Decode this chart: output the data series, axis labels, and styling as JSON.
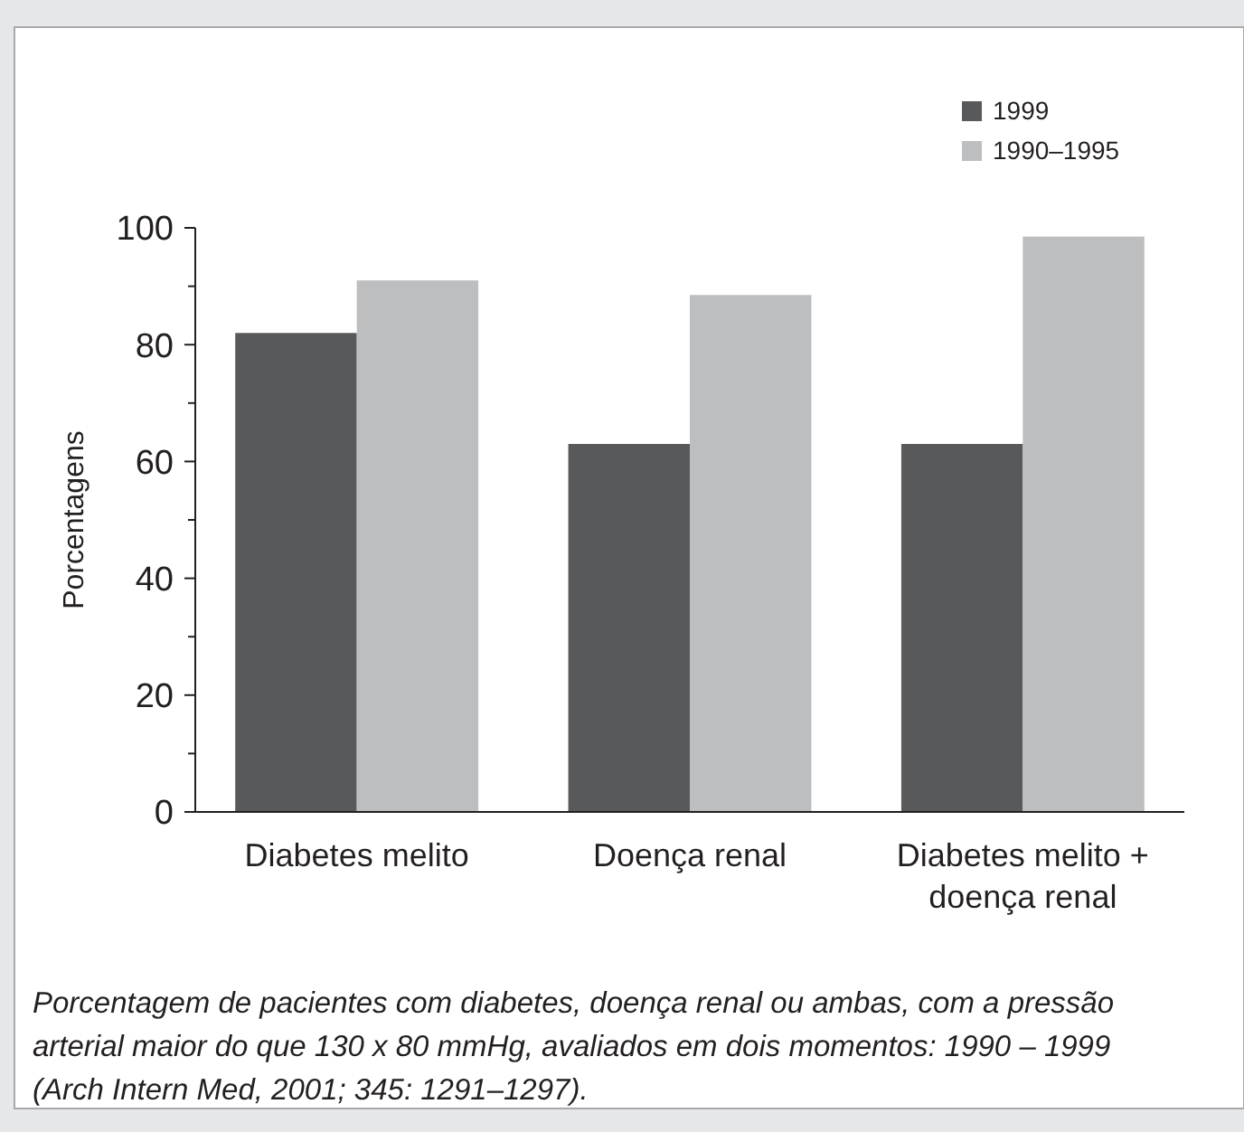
{
  "chart_data": {
    "type": "bar",
    "categories": [
      "Diabetes melito",
      "Doença renal",
      "Diabetes melito + doença renal"
    ],
    "series": [
      {
        "name": "1999",
        "color": "#58595b",
        "values": [
          82,
          63,
          63
        ]
      },
      {
        "name": "1990–1995",
        "color": "#bcbec0",
        "values": [
          91,
          88.5,
          98.5
        ]
      }
    ],
    "ylabel": "Porcentagens",
    "ylim": [
      0,
      100
    ],
    "yticks": [
      0,
      {
        "value": 10,
        "label": null
      },
      20,
      {
        "value": 30,
        "label": null
      },
      40,
      {
        "value": 50,
        "label": null
      },
      60,
      {
        "value": 70,
        "label": null
      },
      80,
      {
        "value": 90,
        "label": null
      },
      100
    ],
    "legend": "top right",
    "annotations": [
      "Porcentagem de pacientes com diabetes, doença renal ou ambas, com a pressão arterial maior do que 130 x 80 mmHg, avaliados em dois momentos: 1990 – 1999 (Arch Intern Med, 2001; 345: 1291–1297)."
    ]
  }
}
